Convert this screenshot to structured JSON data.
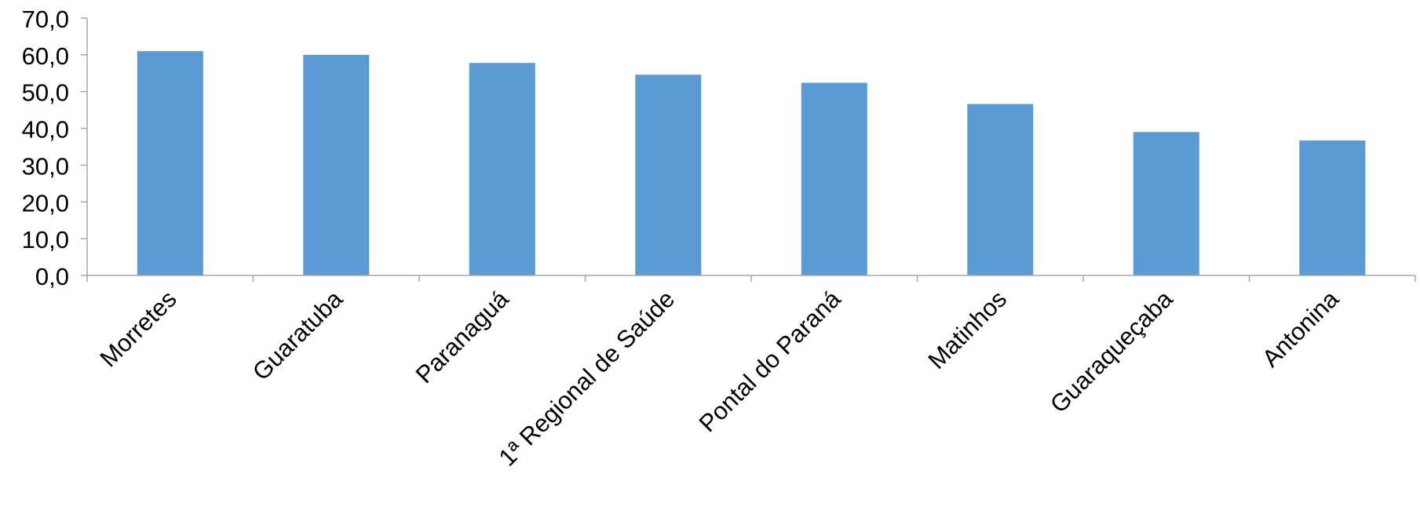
{
  "chart_data": {
    "type": "bar",
    "categories": [
      "Morretes",
      "Guaratuba",
      "Paranaguá",
      "1ª Regional de Saúde",
      "Pontal do Paraná",
      "Matinhos",
      "Guaraqueçaba",
      "Antonina"
    ],
    "values": [
      61.0,
      60.0,
      57.8,
      54.6,
      52.4,
      46.6,
      39.0,
      36.7
    ],
    "ylim": [
      0,
      70
    ],
    "ytick_step": 10,
    "ytick_labels": [
      "0,0",
      "10,0",
      "20,0",
      "30,0",
      "40,0",
      "50,0",
      "60,0",
      "70,0"
    ],
    "title": "",
    "xlabel": "",
    "ylabel": "",
    "grid": false,
    "legend": "none",
    "colors": {
      "bar": "#5b9bd5",
      "axis": "#a6a6a6",
      "text": "#000000"
    }
  }
}
